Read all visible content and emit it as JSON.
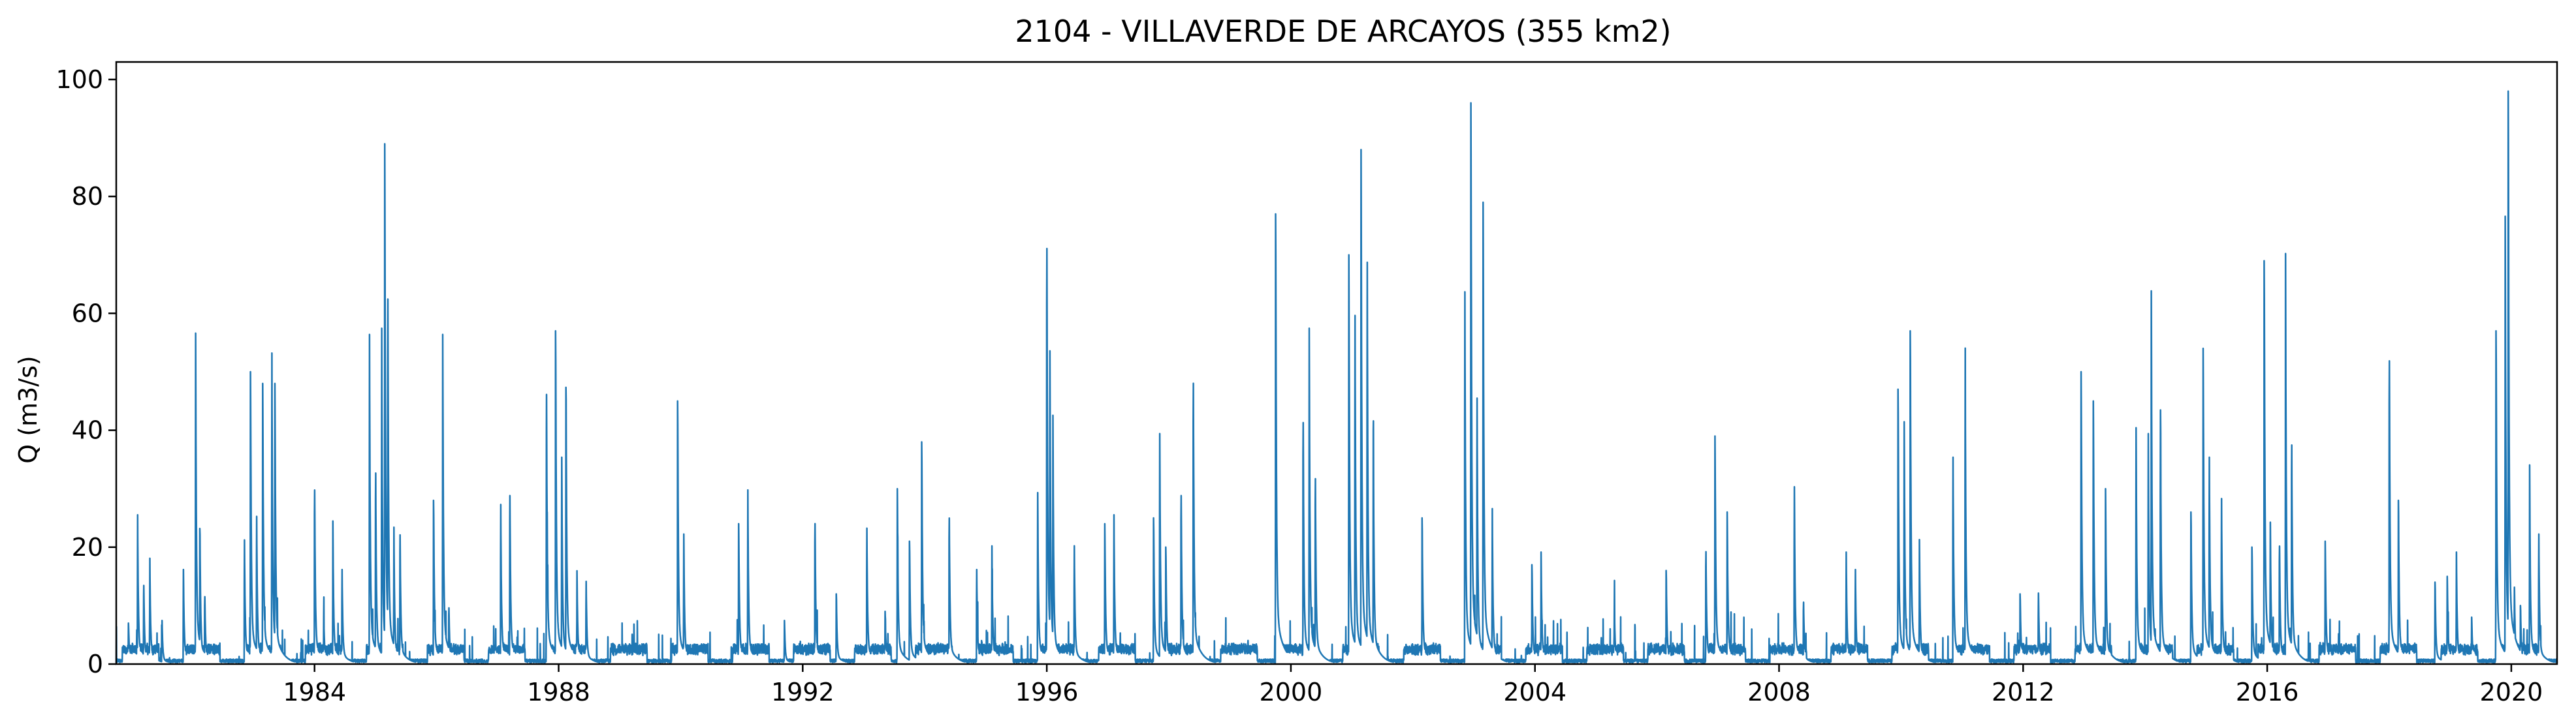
{
  "chart_data": {
    "type": "line",
    "title": "2104 - VILLAVERDE DE ARCAYOS (355 km2)",
    "xlabel": "",
    "ylabel": "Q (m3/s)",
    "xlim": [
      1980.75,
      2020.75
    ],
    "ylim": [
      0,
      103
    ],
    "x_ticks": [
      1984,
      1988,
      1992,
      1996,
      2000,
      2004,
      2008,
      2012,
      2016,
      2020
    ],
    "y_ticks": [
      0,
      20,
      40,
      60,
      80,
      100
    ],
    "grid": false,
    "legend": "none",
    "series": [
      {
        "color": "#1f77b4",
        "peaks": [
          [
            1980.95,
            7
          ],
          [
            1981.1,
            24
          ],
          [
            1981.2,
            14
          ],
          [
            1981.3,
            17
          ],
          [
            1981.5,
            7
          ],
          [
            1981.85,
            16
          ],
          [
            1982.05,
            56
          ],
          [
            1982.12,
            24
          ],
          [
            1982.2,
            12
          ],
          [
            1982.85,
            21
          ],
          [
            1982.95,
            50
          ],
          [
            1983.05,
            25
          ],
          [
            1983.15,
            48
          ],
          [
            1983.3,
            50
          ],
          [
            1983.35,
            48
          ],
          [
            1984.0,
            31
          ],
          [
            1984.15,
            8
          ],
          [
            1984.3,
            23
          ],
          [
            1984.45,
            16
          ],
          [
            1984.9,
            53
          ],
          [
            1985.0,
            34
          ],
          [
            1985.1,
            54
          ],
          [
            1985.15,
            89
          ],
          [
            1985.2,
            65
          ],
          [
            1985.3,
            22
          ],
          [
            1985.4,
            23
          ],
          [
            1985.95,
            28
          ],
          [
            1986.1,
            53
          ],
          [
            1986.2,
            10
          ],
          [
            1987.05,
            27
          ],
          [
            1987.2,
            30
          ],
          [
            1987.8,
            48
          ],
          [
            1987.95,
            57
          ],
          [
            1988.05,
            35
          ],
          [
            1988.12,
            49
          ],
          [
            1988.3,
            15
          ],
          [
            1988.45,
            14
          ],
          [
            1989.95,
            45
          ],
          [
            1990.05,
            22
          ],
          [
            1990.95,
            24
          ],
          [
            1991.1,
            28
          ],
          [
            1991.7,
            7
          ],
          [
            1992.2,
            25
          ],
          [
            1992.55,
            12
          ],
          [
            1993.05,
            23
          ],
          [
            1993.35,
            9
          ],
          [
            1993.55,
            30
          ],
          [
            1993.75,
            21
          ],
          [
            1993.95,
            38
          ],
          [
            1994.4,
            26
          ],
          [
            1994.85,
            16
          ],
          [
            1995.1,
            19
          ],
          [
            1995.85,
            29
          ],
          [
            1996.0,
            74
          ],
          [
            1996.05,
            53
          ],
          [
            1996.1,
            40
          ],
          [
            1996.45,
            20
          ],
          [
            1996.95,
            24
          ],
          [
            1997.1,
            24
          ],
          [
            1997.75,
            25
          ],
          [
            1997.85,
            39
          ],
          [
            1997.95,
            20
          ],
          [
            1998.2,
            30
          ],
          [
            1998.4,
            50
          ],
          [
            1999.75,
            77
          ],
          [
            2000.2,
            43
          ],
          [
            2000.3,
            54
          ],
          [
            2000.4,
            33
          ],
          [
            2000.95,
            70
          ],
          [
            2001.05,
            59
          ],
          [
            2001.15,
            88
          ],
          [
            2001.25,
            68
          ],
          [
            2001.35,
            40
          ],
          [
            2002.15,
            25
          ],
          [
            2002.85,
            63
          ],
          [
            2002.95,
            96
          ],
          [
            2003.05,
            45
          ],
          [
            2003.15,
            79
          ],
          [
            2003.3,
            25
          ],
          [
            2003.95,
            17
          ],
          [
            2004.1,
            18
          ],
          [
            2005.3,
            10
          ],
          [
            2006.15,
            16
          ],
          [
            2006.8,
            20
          ],
          [
            2006.95,
            39
          ],
          [
            2007.15,
            26
          ],
          [
            2008.25,
            30
          ],
          [
            2008.4,
            11
          ],
          [
            2009.1,
            18
          ],
          [
            2009.25,
            16
          ],
          [
            2009.95,
            47
          ],
          [
            2010.05,
            41
          ],
          [
            2010.15,
            57
          ],
          [
            2010.3,
            20
          ],
          [
            2010.85,
            35
          ],
          [
            2011.05,
            49
          ],
          [
            2011.95,
            12
          ],
          [
            2012.25,
            12
          ],
          [
            2012.95,
            50
          ],
          [
            2013.15,
            45
          ],
          [
            2013.35,
            30
          ],
          [
            2013.85,
            40
          ],
          [
            2014.05,
            39
          ],
          [
            2014.1,
            60
          ],
          [
            2014.25,
            43
          ],
          [
            2014.75,
            26
          ],
          [
            2014.95,
            54
          ],
          [
            2015.05,
            35
          ],
          [
            2015.25,
            28
          ],
          [
            2015.75,
            20
          ],
          [
            2015.95,
            69
          ],
          [
            2016.05,
            24
          ],
          [
            2016.2,
            21
          ],
          [
            2016.3,
            66
          ],
          [
            2016.4,
            39
          ],
          [
            2016.95,
            21
          ],
          [
            2018.0,
            54
          ],
          [
            2018.15,
            28
          ],
          [
            2018.75,
            14
          ],
          [
            2018.95,
            15
          ],
          [
            2019.1,
            18
          ],
          [
            2019.35,
            8
          ],
          [
            2019.75,
            57
          ],
          [
            2019.9,
            72
          ],
          [
            2019.95,
            98
          ],
          [
            2020.05,
            13
          ],
          [
            2020.15,
            10
          ],
          [
            2020.3,
            32
          ],
          [
            2020.45,
            22
          ]
        ]
      }
    ]
  }
}
